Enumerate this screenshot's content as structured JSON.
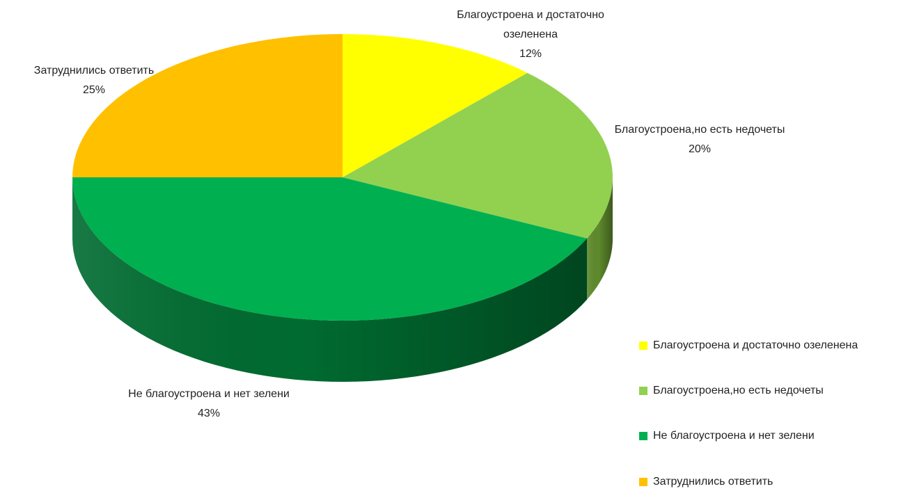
{
  "chart_data": {
    "type": "pie",
    "three_d": true,
    "title": "",
    "start_angle_deg": 0,
    "direction": "clockwise",
    "series": [
      {
        "values": [
          12,
          20,
          43,
          25
        ]
      }
    ],
    "categories": [
      "Благоустроена и достаточно озеленена",
      "Благоустроена,но есть недочеты",
      "Не благоустроена и нет зелени",
      "Затруднились ответить"
    ],
    "slice_labels": [
      {
        "name": "Благоустроена и достаточно озеленена",
        "percent": "12%"
      },
      {
        "name": "Благоустроена,но есть недочеты",
        "percent": "20%"
      },
      {
        "name": "Не благоустроена и нет зелени",
        "percent": "43%"
      },
      {
        "name": "Затруднились ответить",
        "percent": "25%"
      }
    ],
    "colors": [
      "#FFFF00",
      "#92D050",
      "#00B050",
      "#FFC000"
    ],
    "side_colors": [
      "#B8B800",
      "#5E8A2C",
      "#006B30",
      "#B88A00"
    ],
    "legend_position": "bottom-right"
  },
  "legend": {
    "items": [
      {
        "label": "Благоустроена и достаточно озеленена",
        "color": "#FFFF00"
      },
      {
        "label": "Благоустроена,но есть недочеты",
        "color": "#92D050"
      },
      {
        "label": "Не благоустроена и нет зелени",
        "color": "#00B050"
      },
      {
        "label": "Затруднились ответить",
        "color": "#FFC000"
      }
    ]
  }
}
